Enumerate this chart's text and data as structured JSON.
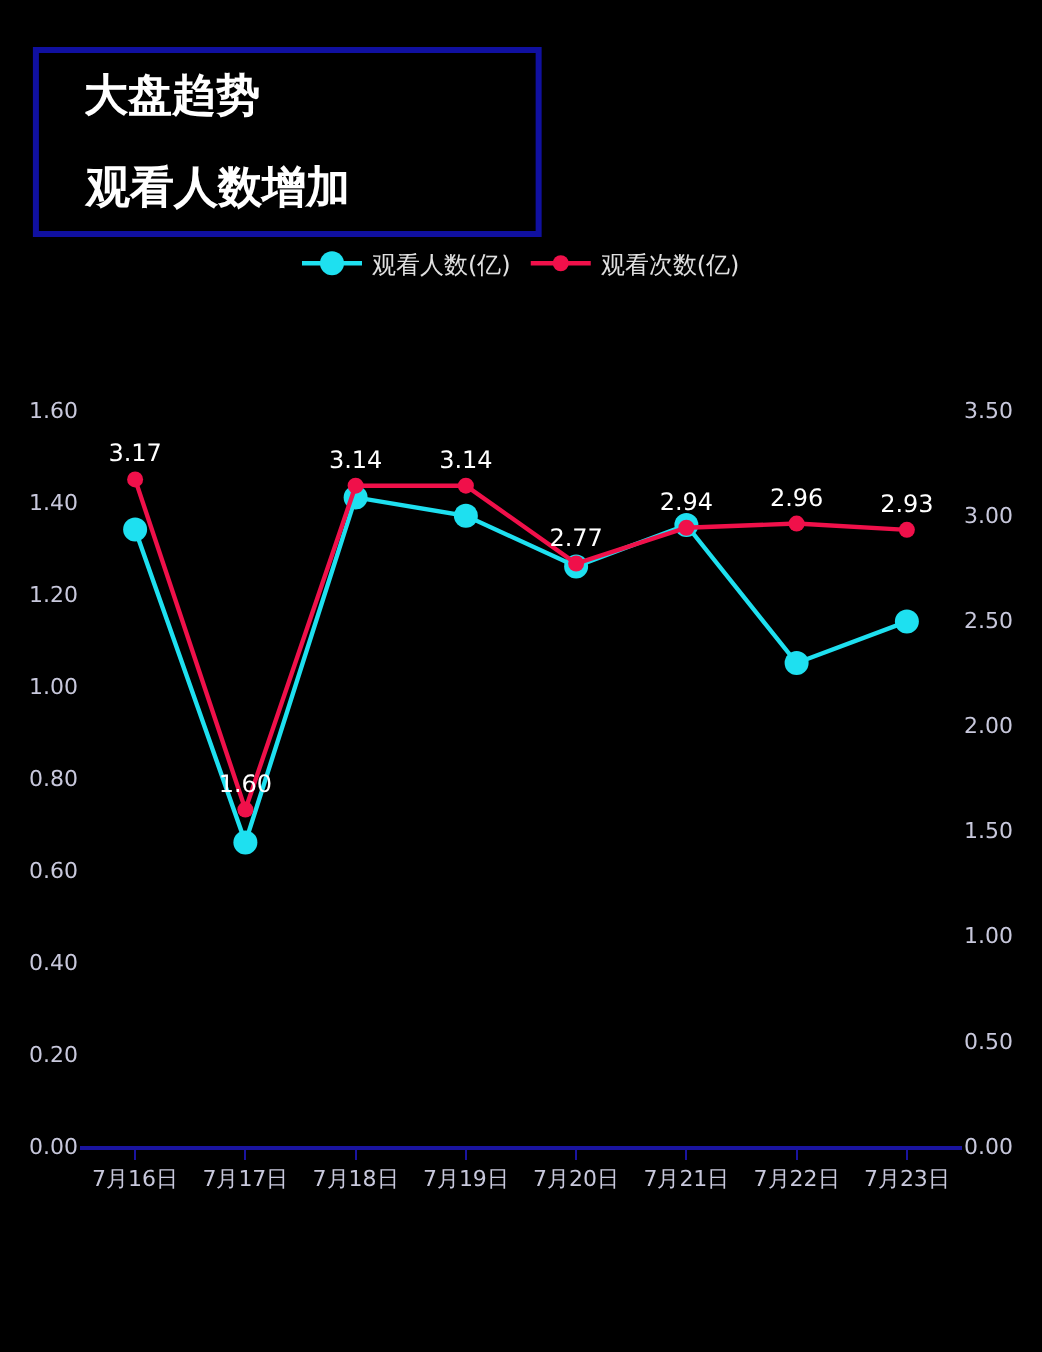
{
  "chart_data": {
    "type": "line",
    "title": "大盘趋势",
    "subtitle": "观看人数增加",
    "categories": [
      "7月16日",
      "7月17日",
      "7月18日",
      "7月19日",
      "7月20日",
      "7月21日",
      "7月22日",
      "7月23日"
    ],
    "series": [
      {
        "name": "观看人数(亿)",
        "color": "#1ee0f0",
        "values": [
          1.34,
          0.66,
          1.41,
          1.37,
          1.26,
          1.35,
          1.05,
          1.14
        ]
      },
      {
        "name": "观看次数(亿)",
        "color": "#f0104a",
        "axis": "y2",
        "values": [
          3.17,
          1.6,
          3.14,
          3.14,
          2.77,
          2.94,
          2.96,
          2.93
        ],
        "value_labels": [
          "3.17",
          "1.60",
          "3.14",
          "3.14",
          "2.77",
          "2.94",
          "2.96",
          "2.93"
        ]
      }
    ],
    "ylim": [
      0,
      1.6
    ],
    "yticks": [
      {
        "value": 0,
        "label": "0.00"
      },
      {
        "value": 0.2,
        "label": "0.20"
      },
      {
        "value": 0.4,
        "label": "0.40"
      },
      {
        "value": 0.6,
        "label": "0.60"
      },
      {
        "value": 0.8,
        "label": "0.80"
      },
      {
        "value": 1.0,
        "label": "1.00"
      },
      {
        "value": 1.2,
        "label": "1.20"
      },
      {
        "value": 1.4,
        "label": "1.40"
      },
      {
        "value": 1.6,
        "label": "1.60"
      }
    ],
    "y2lim": [
      0,
      3.5
    ],
    "y2ticks": [
      {
        "value": 0,
        "label": "0.00"
      },
      {
        "value": 0.5,
        "label": "0.50"
      },
      {
        "value": 1.0,
        "label": "1.00"
      },
      {
        "value": 1.5,
        "label": "1.50"
      },
      {
        "value": 2.0,
        "label": "2.00"
      },
      {
        "value": 2.5,
        "label": "2.50"
      },
      {
        "value": 3.0,
        "label": "3.00"
      },
      {
        "value": 3.5,
        "label": "3.50"
      }
    ],
    "legend": "top",
    "marker": "circle",
    "line_style": "solid",
    "grid": false
  }
}
